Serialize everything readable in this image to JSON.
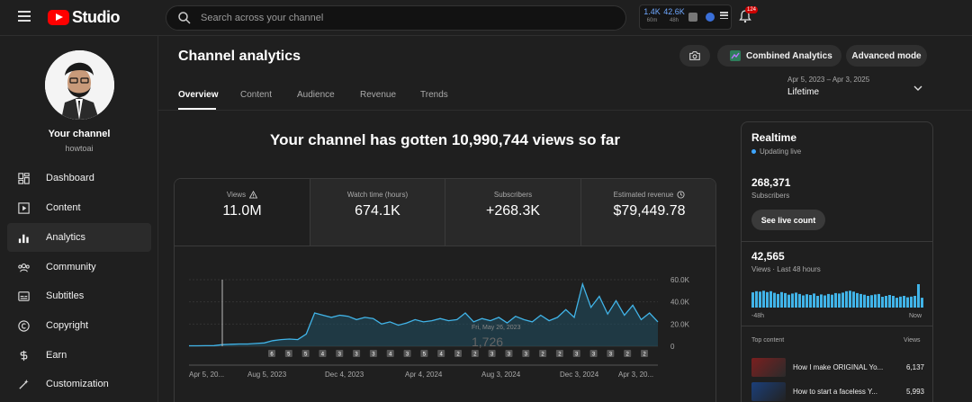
{
  "topbar": {
    "logo_text": "Studio",
    "search_placeholder": "Search across your channel",
    "stats": [
      {
        "value": "1.4K",
        "sub": "60m"
      },
      {
        "value": "42.6K",
        "sub": "48h"
      }
    ],
    "notification_count": "124"
  },
  "sidebar": {
    "channel_name": "Your channel",
    "channel_handle": "howtoai",
    "items": [
      {
        "label": "Dashboard",
        "icon": "dashboard-icon"
      },
      {
        "label": "Content",
        "icon": "content-icon"
      },
      {
        "label": "Analytics",
        "icon": "analytics-icon",
        "active": true
      },
      {
        "label": "Community",
        "icon": "community-icon"
      },
      {
        "label": "Subtitles",
        "icon": "subtitles-icon"
      },
      {
        "label": "Copyright",
        "icon": "copyright-icon"
      },
      {
        "label": "Earn",
        "icon": "earn-icon"
      },
      {
        "label": "Customization",
        "icon": "customization-icon"
      }
    ]
  },
  "header": {
    "title": "Channel analytics",
    "combined_label": "Combined Analytics",
    "advanced_label": "Advanced mode",
    "tabs": [
      "Overview",
      "Content",
      "Audience",
      "Revenue",
      "Trends"
    ],
    "active_tab": "Overview",
    "date_range": "Apr 5, 2023 – Apr 3, 2025",
    "date_label": "Lifetime"
  },
  "main": {
    "headline": "Your channel has gotten 10,990,744 views so far",
    "metrics": [
      {
        "label": "Views",
        "value": "11.0M",
        "warning_icon": true
      },
      {
        "label": "Watch time (hours)",
        "value": "674.1K"
      },
      {
        "label": "Subscribers",
        "value": "+268.3K"
      },
      {
        "label": "Estimated revenue",
        "value": "$79,449.78",
        "info_icon": true
      }
    ]
  },
  "chart_data": {
    "type": "area",
    "series": [
      {
        "values": [
          400,
          400,
          500,
          600,
          1500,
          1800,
          2000,
          2000,
          2500,
          3000,
          5000,
          6000,
          6500,
          6000,
          11000,
          30000,
          28000,
          26000,
          28000,
          27000,
          24000,
          26000,
          25000,
          20000,
          22000,
          19000,
          21000,
          24000,
          22000,
          23000,
          25000,
          23000,
          24000,
          30000,
          22000,
          25000,
          23000,
          26000,
          21000,
          27000,
          24000,
          22000,
          28000,
          23000,
          26000,
          33000,
          26000,
          56000,
          35000,
          45000,
          29000,
          41000,
          28000,
          37000,
          24000,
          30000,
          22000
        ]
      }
    ],
    "x_tick_labels": [
      "Apr 5, 20...",
      "Aug 5, 2023",
      "Dec 4, 2023",
      "Apr 4, 2024",
      "Aug 3, 2024",
      "Dec 3, 2024",
      "Apr 3, 20..."
    ],
    "y_tick_labels": [
      "60.0K",
      "40.0K",
      "20.0K",
      "0"
    ],
    "ylim": [
      0,
      60000
    ],
    "hover_label": "Fri, May 26, 2023",
    "hover_value": "1,726",
    "line_color": "#41b4e8",
    "fill_color": "#1f4e63",
    "markers": [
      "6",
      "5",
      "5",
      "4",
      "3",
      "3",
      "3",
      "4",
      "3",
      "5",
      "4",
      "2",
      "2",
      "3",
      "3",
      "3",
      "2",
      "2",
      "3",
      "3",
      "3",
      "2",
      "2"
    ],
    "grid": true
  },
  "realtime": {
    "title": "Realtime",
    "status": "Updating live",
    "subscribers": "268,371",
    "subscribers_label": "Subscribers",
    "button": "See live count",
    "views": "42,565",
    "views_label": "Views · Last 48 hours",
    "axis_start": "-48h",
    "axis_end": "Now",
    "bar_values": [
      0.65,
      0.7,
      0.68,
      0.72,
      0.66,
      0.7,
      0.63,
      0.58,
      0.66,
      0.62,
      0.55,
      0.6,
      0.64,
      0.58,
      0.52,
      0.57,
      0.54,
      0.6,
      0.5,
      0.56,
      0.52,
      0.58,
      0.55,
      0.62,
      0.6,
      0.64,
      0.7,
      0.72,
      0.68,
      0.62,
      0.58,
      0.55,
      0.5,
      0.53,
      0.56,
      0.58,
      0.46,
      0.5,
      0.54,
      0.5,
      0.42,
      0.47,
      0.5,
      0.44,
      0.47,
      0.5,
      1.0,
      0.42
    ],
    "top_content_label": "Top content",
    "top_content_views_label": "Views",
    "top_content": [
      {
        "title": "How I make ORIGINAL Yo...",
        "views": "6,137"
      },
      {
        "title": "How to start a faceless Y...",
        "views": "5,993"
      }
    ]
  }
}
